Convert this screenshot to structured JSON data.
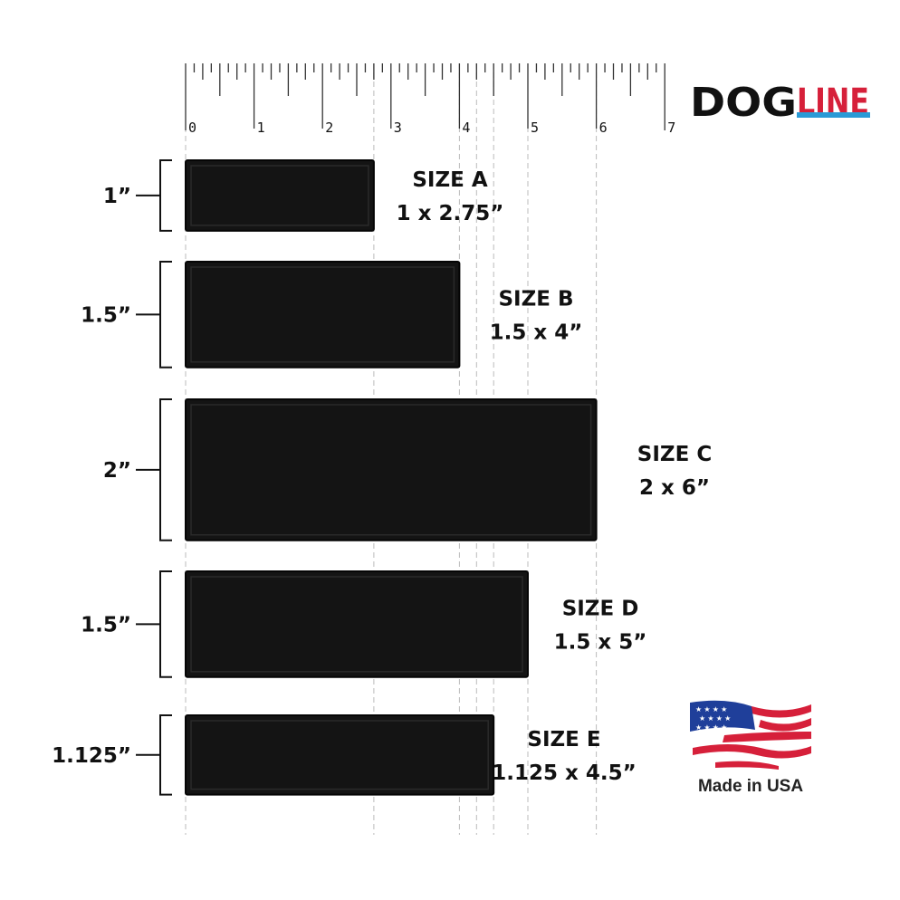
{
  "logo": {
    "part1": "DOG",
    "part2": "LINE",
    "colors": {
      "dog": "#111111",
      "line": "#d6203a",
      "underline": "#2a9ad6"
    }
  },
  "ruler": {
    "unit": "inch",
    "labels": [
      "0",
      "1",
      "2",
      "3",
      "4",
      "5",
      "6",
      "7"
    ],
    "subdivisions_per_inch": 8
  },
  "patches": [
    {
      "height_label": "1”",
      "name": "SIZE A",
      "dims": "1 x 2.75”",
      "height_in": 1,
      "width_in": 2.75
    },
    {
      "height_label": "1.5”",
      "name": "SIZE B",
      "dims": "1.5 x 4”",
      "height_in": 1.5,
      "width_in": 4
    },
    {
      "height_label": "2”",
      "name": "SIZE C",
      "dims": "2 x 6”",
      "height_in": 2,
      "width_in": 6
    },
    {
      "height_label": "1.5”",
      "name": "SIZE D",
      "dims": "1.5 x 5”",
      "height_in": 1.5,
      "width_in": 5
    },
    {
      "height_label": "1.125”",
      "name": "SIZE E",
      "dims": "1.125 x 4.5”",
      "height_in": 1.125,
      "width_in": 4.5
    }
  ],
  "badge": {
    "text": "Made in USA",
    "icon": "us-flag-icon"
  },
  "colors": {
    "patch": "#141414",
    "patch_border": "#050505",
    "guide": "#bbbbbb"
  }
}
